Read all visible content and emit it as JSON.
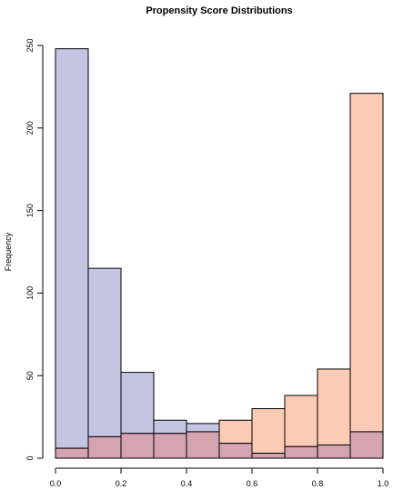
{
  "chart_data": {
    "type": "bar",
    "title": "Propensity Score Distributions",
    "xlabel": "",
    "ylabel": "Frequency",
    "xlim": [
      0,
      1
    ],
    "ylim": [
      0,
      250
    ],
    "x_ticks": [
      "0.0",
      "0.2",
      "0.4",
      "0.6",
      "0.8",
      "1.0"
    ],
    "y_ticks": [
      "0",
      "50",
      "100",
      "150",
      "200",
      "250"
    ],
    "bin_edges": [
      0.0,
      0.1,
      0.2,
      0.3,
      0.4,
      0.5,
      0.6,
      0.7,
      0.8,
      0.9,
      1.0
    ],
    "grid": false,
    "series": [
      {
        "values": [
          248,
          115,
          52,
          23,
          21,
          9,
          3,
          7,
          8,
          16
        ],
        "color": "#c3c5e3"
      },
      {
        "values": [
          6,
          13,
          15,
          15,
          16,
          23,
          30,
          38,
          54,
          221
        ],
        "color": "#fbcbb5"
      }
    ],
    "overlap_color": "#d4a4b2"
  }
}
